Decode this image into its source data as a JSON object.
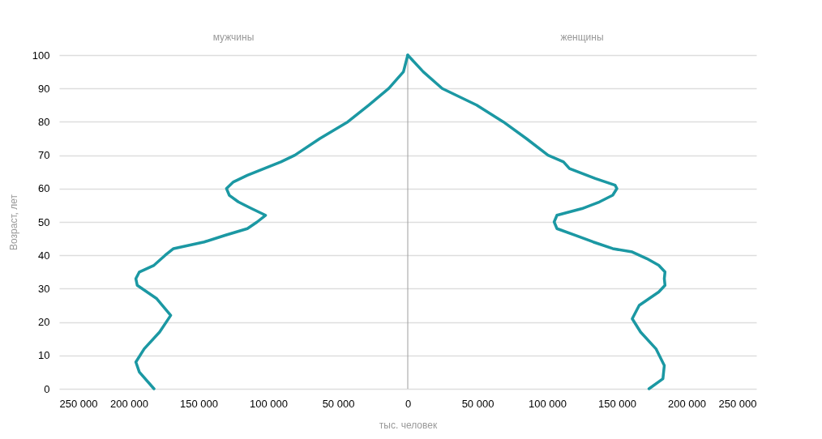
{
  "chart_data": {
    "type": "line",
    "orientation": "horizontal",
    "xlabel": "тыс. человек",
    "ylabel": "Возраст, лет",
    "xlim": [
      -250000,
      250000
    ],
    "xticks": [
      {
        "value": -250000,
        "label": "250 000"
      },
      {
        "value": -200000,
        "label": "200 000"
      },
      {
        "value": -150000,
        "label": "150 000"
      },
      {
        "value": -100000,
        "label": "100 000"
      },
      {
        "value": -50000,
        "label": "50 000"
      },
      0,
      {
        "value": 50000,
        "label": "50 000"
      },
      {
        "value": 100000,
        "label": "100 000"
      },
      {
        "value": 150000,
        "label": "150 000"
      },
      {
        "value": 200000,
        "label": "200 000"
      },
      {
        "value": 250000,
        "label": "250 000"
      }
    ],
    "ylim": [
      0,
      100
    ],
    "yticks": [
      0,
      10,
      20,
      30,
      40,
      50,
      60,
      70,
      80,
      90,
      100
    ],
    "grid": "y",
    "marker": "none",
    "line_style": "solid",
    "ref_lines": [
      {
        "axis": "x",
        "value": 0,
        "color": "#9e9e9e"
      }
    ],
    "annotations": [
      "мужчины",
      "женщины"
    ],
    "series": [
      {
        "color": "#1b98a3",
        "x": [
          0,
          5,
          8,
          12,
          17,
          22,
          27,
          31,
          33,
          35,
          37,
          40,
          42,
          44,
          46,
          48,
          50,
          52,
          54,
          56,
          58,
          60,
          62,
          64,
          66,
          68,
          70,
          75,
          80,
          85,
          90,
          95,
          100
        ],
        "values": [
          -182000,
          -192500,
          -195000,
          -189000,
          -178000,
          -170000,
          -180000,
          -194000,
          -195000,
          -192500,
          -182000,
          -174000,
          -168000,
          -146000,
          -131000,
          -115000,
          -108000,
          -102000,
          -112000,
          -121500,
          -128000,
          -130000,
          -125000,
          -115000,
          -103000,
          -91000,
          -81000,
          -63000,
          -43000,
          -28000,
          -13600,
          -3100,
          0
        ]
      },
      {
        "color": "#1b98a3",
        "x": [
          0,
          3,
          7,
          12,
          17,
          21,
          25,
          29,
          31,
          33,
          35,
          37,
          39,
          41,
          42,
          44,
          46,
          48,
          50,
          52,
          54,
          56,
          58,
          60,
          61,
          63,
          66,
          68,
          70,
          75,
          80,
          85,
          90,
          95,
          100
        ],
        "values": [
          173000,
          183000,
          184000,
          178000,
          167000,
          161000,
          166000,
          180000,
          184500,
          184000,
          184500,
          180000,
          171500,
          161000,
          147000,
          133000,
          120000,
          107000,
          105000,
          107000,
          125000,
          137500,
          147000,
          150000,
          148700,
          134500,
          116000,
          111700,
          100600,
          85000,
          68500,
          49400,
          24700,
          11100,
          0
        ]
      }
    ]
  }
}
